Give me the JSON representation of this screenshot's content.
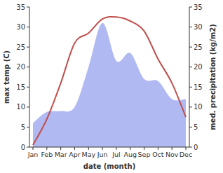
{
  "chart_data": {
    "type": "line",
    "x_label": "date (month)",
    "y_label": "max temp (C)",
    "y2_label": "med. precipitation (kg/m2)",
    "categories": [
      "Jan",
      "Feb",
      "Mar",
      "Apr",
      "May",
      "Jun",
      "Jul",
      "Aug",
      "Sep",
      "Oct",
      "Nov",
      "Dec"
    ],
    "series": [
      {
        "type": "area",
        "axis": "y2",
        "color": "#b0b9f2",
        "values": [
          6,
          8.8,
          9,
          10,
          20,
          31,
          21.5,
          23.5,
          17,
          16.5,
          12,
          12
        ]
      },
      {
        "type": "line",
        "color": "#c0504d",
        "values": [
          0.5,
          7,
          16,
          26,
          28.5,
          32,
          32.5,
          31.5,
          29,
          22,
          16,
          7.5
        ]
      }
    ],
    "ylim": [
      0,
      35
    ],
    "yticks": [
      0,
      5,
      10,
      15,
      20,
      25,
      30,
      35
    ],
    "y2lim": [
      0,
      35
    ],
    "y2ticks": [
      0,
      5,
      10,
      15,
      20,
      25,
      30,
      35
    ],
    "grid": false
  }
}
